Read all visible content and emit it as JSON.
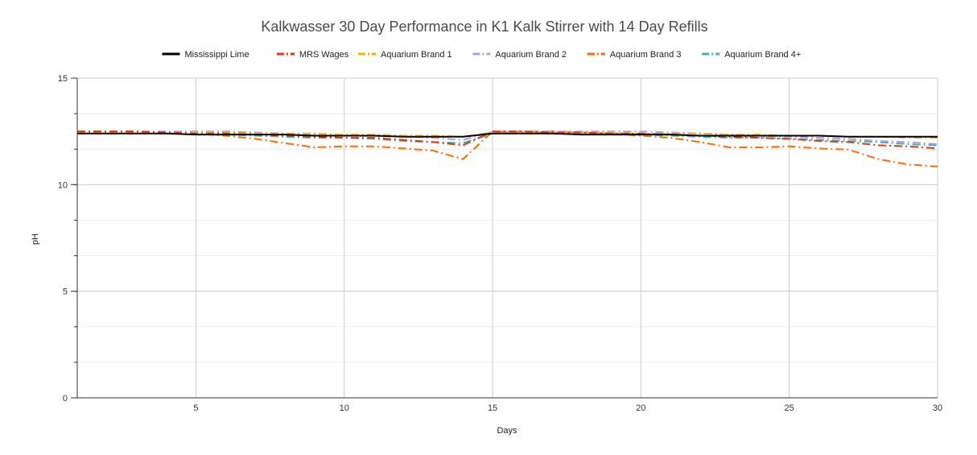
{
  "chart_data": {
    "type": "line",
    "title": "Kalkwasser 30 Day Performance in K1 Kalk Stirrer with 14 Day Refills",
    "xlabel": "Days",
    "ylabel": "pH",
    "xlim": [
      1,
      30
    ],
    "ylim": [
      0,
      15
    ],
    "x_ticks": [
      5,
      10,
      15,
      20,
      25,
      30
    ],
    "y_ticks": [
      0,
      5,
      10,
      15
    ],
    "grid": true,
    "legend_position": "top",
    "x": [
      1,
      2,
      3,
      4,
      5,
      6,
      7,
      8,
      9,
      10,
      11,
      12,
      13,
      14,
      15,
      16,
      17,
      18,
      19,
      20,
      21,
      22,
      23,
      24,
      25,
      26,
      27,
      28,
      29,
      30
    ],
    "series": [
      {
        "name": "Mississippi Lime",
        "color": "#000000",
        "dash": "solid",
        "values": [
          12.4,
          12.4,
          12.4,
          12.4,
          12.35,
          12.35,
          12.35,
          12.35,
          12.3,
          12.3,
          12.3,
          12.25,
          12.25,
          12.25,
          12.4,
          12.4,
          12.4,
          12.35,
          12.35,
          12.35,
          12.35,
          12.3,
          12.3,
          12.3,
          12.3,
          12.3,
          12.25,
          12.25,
          12.25,
          12.25
        ]
      },
      {
        "name": "MRS Wages",
        "color": "#dc3912",
        "dash": "dashdot",
        "values": [
          12.5,
          12.5,
          12.5,
          12.45,
          12.4,
          12.4,
          12.35,
          12.3,
          12.25,
          12.2,
          12.2,
          12.1,
          12.0,
          11.85,
          12.5,
          12.5,
          12.45,
          12.45,
          12.4,
          12.4,
          12.35,
          12.3,
          12.25,
          12.2,
          12.15,
          12.05,
          12.0,
          11.85,
          11.8,
          11.7
        ]
      },
      {
        "name": "Aquarium Brand 1",
        "color": "#f4b400",
        "dash": "dashdot",
        "values": [
          12.45,
          12.45,
          12.45,
          12.45,
          12.45,
          12.45,
          12.4,
          12.4,
          12.4,
          12.35,
          12.35,
          12.3,
          12.3,
          12.25,
          12.45,
          12.45,
          12.45,
          12.45,
          12.45,
          12.4,
          12.4,
          12.4,
          12.35,
          12.35,
          12.3,
          12.3,
          12.25,
          12.25,
          12.2,
          12.2
        ]
      },
      {
        "name": "Aquarium Brand 2",
        "color": "#b39ddb",
        "dash": "dashdot",
        "values": [
          12.5,
          12.5,
          12.5,
          12.5,
          12.5,
          12.5,
          12.45,
          12.4,
          12.35,
          12.3,
          12.3,
          12.25,
          12.2,
          12.1,
          12.5,
          12.5,
          12.5,
          12.5,
          12.5,
          12.5,
          12.45,
          12.4,
          12.35,
          12.3,
          12.25,
          12.2,
          12.15,
          12.05,
          12.0,
          11.9
        ]
      },
      {
        "name": "Aquarium Brand 3",
        "color": "#ff6d00",
        "dash": "dashdot",
        "values": [
          12.5,
          12.5,
          12.5,
          12.45,
          12.4,
          12.3,
          12.15,
          11.95,
          11.75,
          11.8,
          11.8,
          11.7,
          11.6,
          11.2,
          12.5,
          12.5,
          12.5,
          12.45,
          12.4,
          12.3,
          12.2,
          12.0,
          11.75,
          11.75,
          11.8,
          11.7,
          11.65,
          11.2,
          10.95,
          10.85
        ]
      },
      {
        "name": "Aquarium Brand 4+",
        "color": "#3cb4b4",
        "dash": "dashdot",
        "values": [
          12.4,
          12.4,
          12.4,
          12.4,
          12.4,
          12.35,
          12.3,
          12.25,
          12.2,
          12.2,
          12.15,
          12.05,
          12.0,
          11.95,
          12.4,
          12.4,
          12.4,
          12.4,
          12.4,
          12.35,
          12.3,
          12.25,
          12.2,
          12.2,
          12.15,
          12.1,
          12.05,
          12.0,
          11.9,
          11.85
        ]
      }
    ]
  }
}
